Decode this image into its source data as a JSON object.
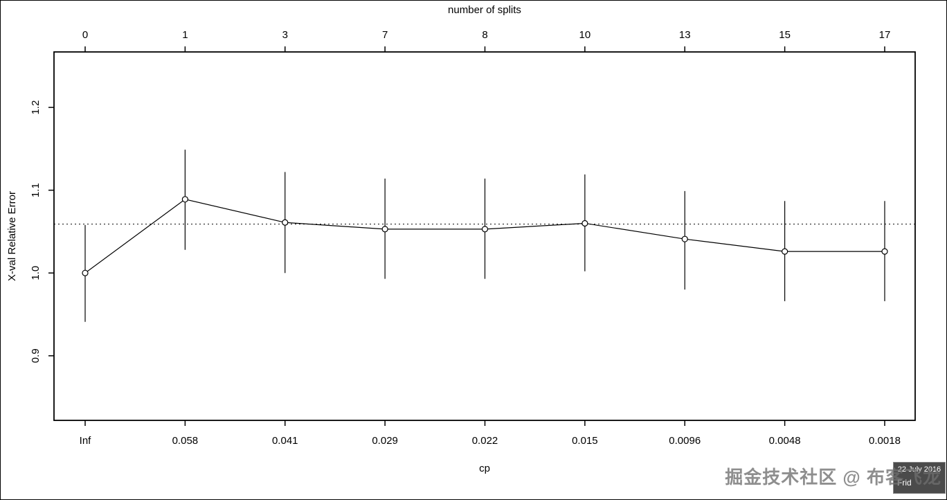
{
  "watermark": {
    "text": "掘金技术社区 @ 布客飞龙"
  },
  "badge": {
    "date": "22 July 2016",
    "day": "Frid"
  },
  "chart_data": {
    "type": "line",
    "top_axis_label": "number of splits",
    "xlabel": "cp",
    "ylabel": "X-val Relative Error",
    "grid": false,
    "legend_position": "none",
    "error_bars": true,
    "ylim": [
      0.822,
      1.267
    ],
    "y_ticks": [
      {
        "value": 0.9,
        "label": "0.9"
      },
      {
        "value": 1.0,
        "label": "1.0"
      },
      {
        "value": 1.1,
        "label": "1.1"
      },
      {
        "value": 1.2,
        "label": "1.2"
      }
    ],
    "threshold_line": 1.059,
    "points": [
      {
        "splits": "0",
        "cp": "Inf",
        "xerror": 1.0,
        "low": 0.941,
        "high": 1.058
      },
      {
        "splits": "1",
        "cp": "0.058",
        "xerror": 1.089,
        "low": 1.028,
        "high": 1.149
      },
      {
        "splits": "3",
        "cp": "0.041",
        "xerror": 1.061,
        "low": 1.0,
        "high": 1.122
      },
      {
        "splits": "7",
        "cp": "0.029",
        "xerror": 1.053,
        "low": 0.993,
        "high": 1.114
      },
      {
        "splits": "8",
        "cp": "0.022",
        "xerror": 1.053,
        "low": 0.993,
        "high": 1.114
      },
      {
        "splits": "10",
        "cp": "0.015",
        "xerror": 1.06,
        "low": 1.002,
        "high": 1.119
      },
      {
        "splits": "13",
        "cp": "0.0096",
        "xerror": 1.041,
        "low": 0.98,
        "high": 1.099
      },
      {
        "splits": "15",
        "cp": "0.0048",
        "xerror": 1.026,
        "low": 0.966,
        "high": 1.087
      },
      {
        "splits": "17",
        "cp": "0.0018",
        "xerror": 1.026,
        "low": 0.966,
        "high": 1.087
      }
    ]
  }
}
